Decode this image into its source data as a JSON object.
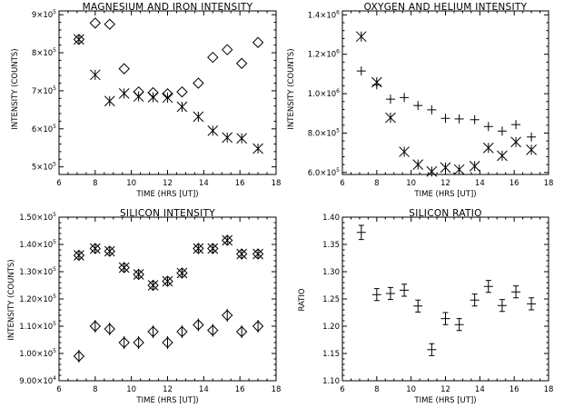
{
  "chart_data": [
    {
      "type": "scatter",
      "title": "MAGNESIUM AND IRON INTENSITY",
      "xlabel": "TIME (HRS [UT])",
      "ylabel": "INTENSITY (COUNTS)",
      "xlim": [
        6,
        18
      ],
      "ylim": [
        480000,
        910000
      ],
      "xticks": [
        6,
        8,
        10,
        12,
        14,
        16,
        18
      ],
      "xtick_labels": [
        "6",
        "8",
        "10",
        "12",
        "14",
        "16",
        "18"
      ],
      "yticks": [
        500000,
        600000,
        700000,
        800000,
        900000
      ],
      "ytick_labels": [
        {
          "m": "5",
          "e": "5"
        },
        {
          "m": "6",
          "e": "5"
        },
        {
          "m": "7",
          "e": "5"
        },
        {
          "m": "8",
          "e": "5"
        },
        {
          "m": "9",
          "e": "5"
        }
      ],
      "grid": false,
      "series": [
        {
          "marker": "diamond",
          "x": [
            7.1,
            8.0,
            8.8,
            9.6,
            10.4,
            11.2,
            12.0,
            12.8,
            13.7,
            14.5,
            15.3,
            16.1,
            17.0
          ],
          "y": [
            835000,
            878000,
            875000,
            758000,
            697000,
            695000,
            692000,
            697000,
            720000,
            788000,
            808000,
            772000,
            827000
          ]
        },
        {
          "marker": "asterisk",
          "x": [
            7.1,
            8.0,
            8.8,
            9.6,
            10.4,
            11.2,
            12.0,
            12.8,
            13.7,
            14.5,
            15.3,
            16.1,
            17.0
          ],
          "y": [
            835000,
            742000,
            673000,
            693000,
            685000,
            683000,
            682000,
            658000,
            632000,
            595000,
            577000,
            575000,
            548000
          ]
        }
      ]
    },
    {
      "type": "scatter",
      "title": "OXYGEN AND HELIUM INTENSITY",
      "xlabel": "TIME (HRS [UT])",
      "ylabel": "INTENSITY (COUNTS)",
      "xlim": [
        6,
        18
      ],
      "ylim": [
        590000,
        1420000
      ],
      "xticks": [
        6,
        8,
        10,
        12,
        14,
        16,
        18
      ],
      "xtick_labels": [
        "6",
        "8",
        "10",
        "12",
        "14",
        "16",
        "18"
      ],
      "yticks": [
        600000,
        800000,
        1000000,
        1200000,
        1400000
      ],
      "ytick_labels": [
        {
          "m": "6.0",
          "e": "5"
        },
        {
          "m": "8.0",
          "e": "5"
        },
        {
          "m": "1.0",
          "e": "6"
        },
        {
          "m": "1.2",
          "e": "6"
        },
        {
          "m": "1.4",
          "e": "6"
        }
      ],
      "grid": false,
      "series": [
        {
          "marker": "plus",
          "x": [
            7.1,
            8.0,
            8.8,
            9.6,
            10.4,
            11.2,
            12.0,
            12.8,
            13.7,
            14.5,
            15.3,
            16.1,
            17.0
          ],
          "y": [
            1115000,
            1045000,
            972000,
            980000,
            940000,
            918000,
            875000,
            872000,
            868000,
            833000,
            810000,
            843000,
            780000
          ]
        },
        {
          "marker": "asterisk",
          "x": [
            7.1,
            8.0,
            8.8,
            9.6,
            10.4,
            11.2,
            12.0,
            12.8,
            13.7,
            14.5,
            15.3,
            16.1,
            17.0
          ],
          "y": [
            1290000,
            1058000,
            878000,
            705000,
            640000,
            605000,
            625000,
            615000,
            632000,
            725000,
            685000,
            755000,
            715000
          ]
        }
      ]
    },
    {
      "type": "scatter",
      "title": "SILICON INTENSITY",
      "xlabel": "TIME (HRS [UT])",
      "ylabel": "INTENSITY (COUNTS)",
      "xlim": [
        6,
        18
      ],
      "ylim": [
        90000,
        150000
      ],
      "xticks": [
        6,
        8,
        10,
        12,
        14,
        16,
        18
      ],
      "xtick_labels": [
        "6",
        "8",
        "10",
        "12",
        "14",
        "16",
        "18"
      ],
      "yticks": [
        90000,
        100000,
        110000,
        120000,
        130000,
        140000,
        150000
      ],
      "ytick_labels": [
        {
          "m": "9.00",
          "e": "4"
        },
        {
          "m": "1.00",
          "e": "5"
        },
        {
          "m": "1.10",
          "e": "5"
        },
        {
          "m": "1.20",
          "e": "5"
        },
        {
          "m": "1.30",
          "e": "5"
        },
        {
          "m": "1.40",
          "e": "5"
        },
        {
          "m": "1.50",
          "e": "5"
        }
      ],
      "grid": false,
      "series": [
        {
          "marker": "asterisk-diamond",
          "x": [
            7.1,
            8.0,
            8.8,
            9.6,
            10.4,
            11.2,
            12.0,
            12.8,
            13.7,
            14.5,
            15.3,
            16.1,
            17.0
          ],
          "y": [
            136000,
            138500,
            137500,
            131500,
            129000,
            125000,
            126500,
            129500,
            138500,
            138500,
            141500,
            136500,
            136500
          ]
        },
        {
          "marker": "diamond-bar",
          "x": [
            7.1,
            8.0,
            8.8,
            9.6,
            10.4,
            11.2,
            12.0,
            12.8,
            13.7,
            14.5,
            15.3,
            16.1,
            17.0
          ],
          "y": [
            99000,
            110000,
            109000,
            104000,
            104000,
            108000,
            104000,
            108000,
            110500,
            108500,
            114000,
            108000,
            110000
          ]
        }
      ]
    },
    {
      "type": "scatter",
      "title": "SILICON RATIO",
      "xlabel": "TIME (HRS [UT])",
      "ylabel": "RATIO",
      "xlim": [
        6,
        18
      ],
      "ylim": [
        1.1,
        1.4
      ],
      "xticks": [
        6,
        8,
        10,
        12,
        14,
        16,
        18
      ],
      "xtick_labels": [
        "6",
        "8",
        "10",
        "12",
        "14",
        "16",
        "18"
      ],
      "yticks": [
        1.1,
        1.15,
        1.2,
        1.25,
        1.3,
        1.35,
        1.4
      ],
      "ytick_labels": [
        "1.10",
        "1.15",
        "1.20",
        "1.25",
        "1.30",
        "1.35",
        "1.40"
      ],
      "grid": false,
      "series": [
        {
          "marker": "errorbar",
          "x": [
            7.1,
            8.0,
            8.8,
            9.6,
            10.4,
            11.2,
            12.0,
            12.8,
            13.7,
            14.5,
            15.3,
            16.1,
            17.0
          ],
          "y": [
            1.372,
            1.258,
            1.26,
            1.266,
            1.237,
            1.157,
            1.214,
            1.203,
            1.248,
            1.273,
            1.238,
            1.263,
            1.241
          ],
          "err": [
            0.013,
            0.011,
            0.011,
            0.011,
            0.011,
            0.011,
            0.011,
            0.011,
            0.011,
            0.011,
            0.011,
            0.011,
            0.011
          ]
        }
      ]
    }
  ]
}
